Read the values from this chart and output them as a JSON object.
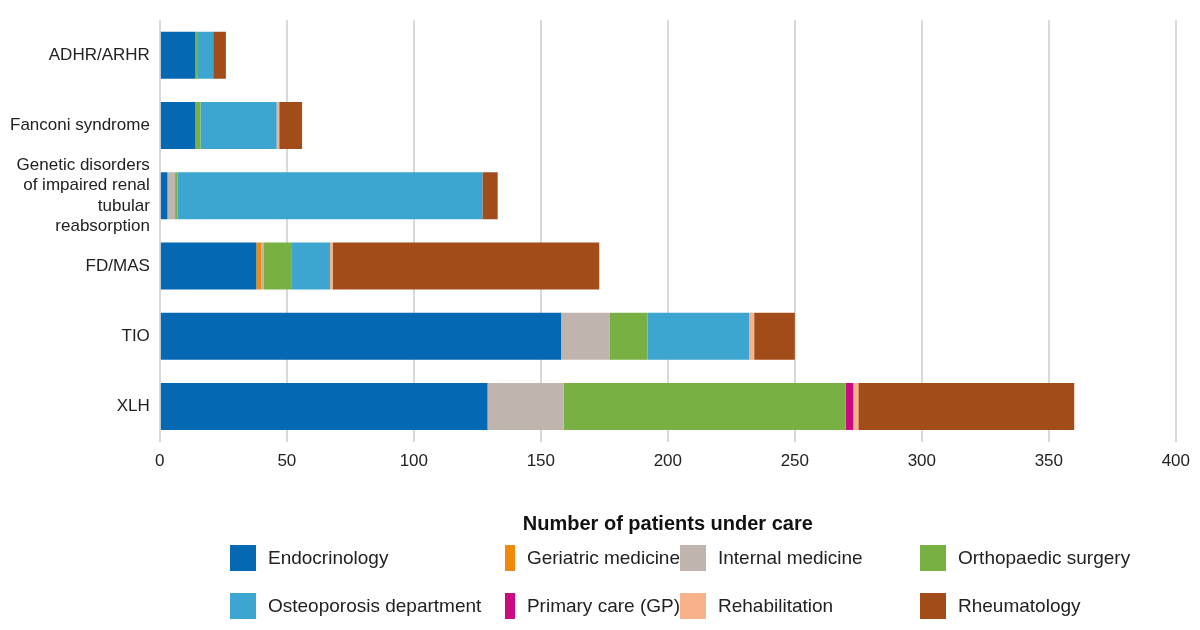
{
  "chart_data": {
    "type": "bar",
    "orientation": "horizontal",
    "stacked": true,
    "xlabel": "Number of patients under care",
    "categories": [
      "ADHR/ARHR",
      "Fanconi syndrome",
      "Genetic disorders of impaired renal tubular reabsorption",
      "FD/MAS",
      "TIO",
      "XLH"
    ],
    "series": [
      {
        "name": "Endocrinology",
        "color": "#0568b2",
        "values": [
          14,
          14,
          3,
          38,
          158,
          129
        ]
      },
      {
        "name": "Geriatric medicine",
        "color": "#f08a0b",
        "values": [
          0,
          0,
          0,
          2,
          0,
          0
        ]
      },
      {
        "name": "Internal medicine",
        "color": "#bfb5ae",
        "values": [
          0,
          0,
          3,
          1,
          19,
          30
        ]
      },
      {
        "name": "Orthopaedic surgery",
        "color": "#78b043",
        "values": [
          1,
          2,
          1,
          11,
          15,
          111
        ]
      },
      {
        "name": "Osteoporosis department",
        "color": "#3ca6d0",
        "values": [
          6,
          30,
          120,
          15,
          40,
          0
        ]
      },
      {
        "name": "Primary care (GP)",
        "color": "#cc0a7f",
        "values": [
          0,
          0,
          0,
          0,
          0,
          3
        ]
      },
      {
        "name": "Rehabilitation",
        "color": "#f7b289",
        "values": [
          0,
          1,
          0,
          1,
          2,
          2
        ]
      },
      {
        "name": "Rheumatology",
        "color": "#a24c19",
        "values": [
          5,
          9,
          6,
          105,
          16,
          85
        ]
      }
    ],
    "xlim": [
      0,
      400
    ],
    "xticks": [
      0,
      50,
      100,
      150,
      200,
      250,
      300,
      350,
      400
    ],
    "grid": "x",
    "legend": "bottom"
  }
}
